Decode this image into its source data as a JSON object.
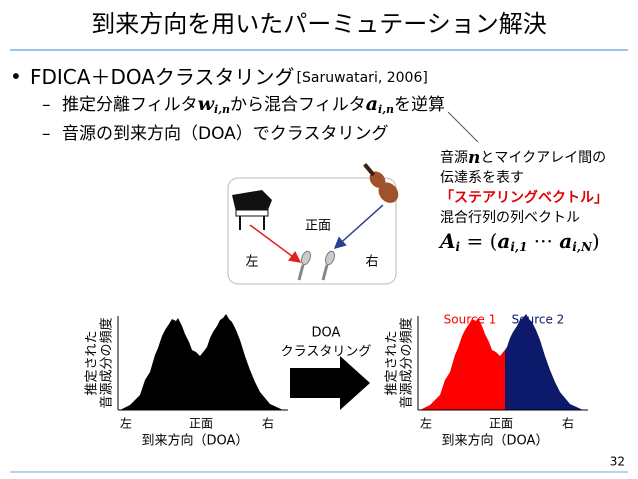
{
  "title": "到来方向を用いたパーミュテーション解決",
  "bullet": {
    "text": "FDICA＋DOAクラスタリング",
    "cite": "[Saruwatari, 2006]"
  },
  "sub_bullets": [
    [
      "推定分離フィルタ",
      "w",
      "i,n",
      "から混合フィルタ",
      "a",
      "i,n",
      "を逆算"
    ],
    [
      "音源の到来方向（DOA）でクラスタリング"
    ]
  ],
  "note": {
    "lines": [
      [
        "音源",
        "n",
        "とマイクアレイ間の"
      ],
      [
        "伝達系を表す"
      ],
      [
        "「ステアリングベクトル」"
      ],
      [
        "混合行列の列ベクトル"
      ]
    ],
    "formula": [
      "A",
      "i",
      " = (",
      "a",
      "i,1",
      " ··· ",
      "a",
      "i,N",
      ")"
    ]
  },
  "diagram": {
    "front": "正面",
    "left": "左",
    "right": "右"
  },
  "histograms": [
    {
      "y_label": [
        "推定された",
        "音源成分の頻度"
      ],
      "x_ticks": [
        "左",
        "正面",
        "右"
      ],
      "x_label": "到来方向（DOA）"
    },
    {
      "y_label": [
        "推定された",
        "音源成分の頻度"
      ],
      "x_ticks": [
        "左",
        "正面",
        "右"
      ],
      "x_label": "到来方向（DOA）",
      "legend": [
        "Source 1",
        "Source 2"
      ]
    }
  ],
  "arrow_label": [
    "DOA",
    "クラスタリング"
  ],
  "page_number": "32"
}
